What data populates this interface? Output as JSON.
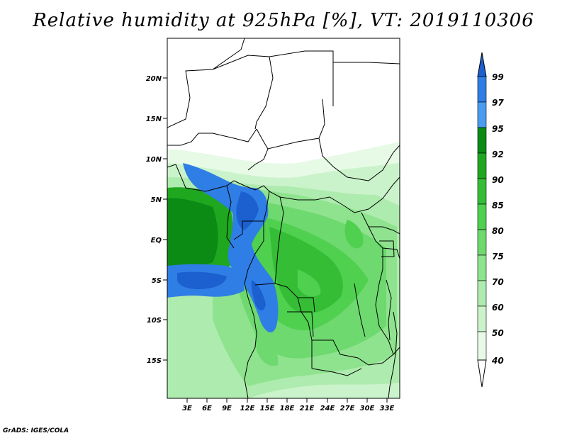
{
  "title": "Relative humidity at 925hPa [%], VT: 2019110306",
  "footer": "GrADS: IGES/COLA",
  "map": {
    "lat_ticks": [
      "20N",
      "15N",
      "10N",
      "5N",
      "EQ",
      "5S",
      "10S",
      "15S"
    ],
    "lon_ticks": [
      "3E",
      "6E",
      "9E",
      "12E",
      "15E",
      "18E",
      "21E",
      "24E",
      "27E",
      "30E",
      "33E"
    ]
  },
  "colorbar": {
    "labels": [
      "99",
      "97",
      "95",
      "92",
      "90",
      "85",
      "80",
      "75",
      "70",
      "60",
      "50",
      "40"
    ],
    "colors": [
      "#1c5fcf",
      "#2f7ee6",
      "#4a9cf0",
      "#0b8a14",
      "#1fa71f",
      "#35be35",
      "#4fd04f",
      "#6ed96e",
      "#8fe38f",
      "#aeebae",
      "#cbf3cb",
      "#e6fae6",
      "#ffffff"
    ]
  }
}
